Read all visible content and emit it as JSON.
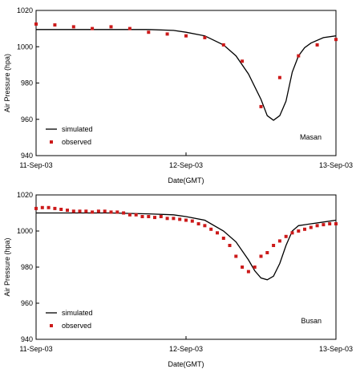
{
  "chart_data": [
    {
      "type": "line",
      "station": "Masan",
      "xlabel": "Date(GMT)",
      "ylabel": "Air Pressure (hpa)",
      "x_tick_labels": [
        "11-Sep-03",
        "12-Sep-03",
        "13-Sep-03"
      ],
      "x_tick_values": [
        0,
        24,
        48
      ],
      "xlim": [
        0,
        48
      ],
      "ylim": [
        940,
        1020
      ],
      "y_ticks": [
        940,
        960,
        980,
        1000,
        1020
      ],
      "series": [
        {
          "name": "simulated",
          "style": "line",
          "x": [
            0,
            6,
            12,
            18,
            22,
            24,
            27,
            30,
            32,
            34,
            36,
            37,
            38,
            39,
            39.5,
            40,
            41,
            42,
            43,
            44,
            46,
            48
          ],
          "y": [
            1009.5,
            1009.5,
            1009.5,
            1009.5,
            1009,
            1008,
            1006,
            1001,
            995,
            985,
            971,
            962,
            959.5,
            962,
            966,
            970,
            986,
            995,
            999.5,
            1002,
            1005,
            1006
          ]
        },
        {
          "name": "observed",
          "style": "marker",
          "x": [
            0,
            3,
            6,
            9,
            12,
            15,
            18,
            21,
            24,
            27,
            30,
            33,
            36,
            39,
            42,
            45,
            48
          ],
          "y": [
            1012.5,
            1012,
            1011,
            1010,
            1011,
            1010,
            1008,
            1007,
            1006,
            1005,
            1001,
            992,
            967,
            983,
            995,
            1001,
            1004
          ]
        }
      ]
    },
    {
      "type": "line",
      "station": "Busan",
      "xlabel": "Date(GMT)",
      "ylabel": "Air Pressure (hpa)",
      "x_tick_labels": [
        "11-Sep-03",
        "12-Sep-03",
        "13-Sep-03"
      ],
      "x_tick_values": [
        0,
        24,
        48
      ],
      "xlim": [
        0,
        48
      ],
      "ylim": [
        940,
        1020
      ],
      "y_ticks": [
        940,
        960,
        980,
        1000,
        1020
      ],
      "series": [
        {
          "name": "simulated",
          "style": "line",
          "x": [
            0,
            6,
            12,
            18,
            22,
            24,
            27,
            30,
            32,
            34,
            35,
            36,
            37,
            38,
            39,
            40,
            41,
            42,
            44,
            46,
            48
          ],
          "y": [
            1010,
            1010,
            1010,
            1009.5,
            1009,
            1008,
            1006,
            1000,
            994,
            984,
            978,
            974,
            973,
            975,
            982,
            992,
            1000,
            1003,
            1004,
            1005,
            1006
          ]
        },
        {
          "name": "observed",
          "style": "marker",
          "x": [
            0,
            1,
            2,
            3,
            4,
            5,
            6,
            7,
            8,
            9,
            10,
            11,
            12,
            13,
            14,
            15,
            16,
            17,
            18,
            19,
            20,
            21,
            22,
            23,
            24,
            25,
            26,
            27,
            28,
            29,
            30,
            31,
            32,
            33,
            34,
            35,
            36,
            37,
            38,
            39,
            40,
            41,
            42,
            43,
            44,
            45,
            46,
            47,
            48
          ],
          "y": [
            1012.5,
            1013,
            1013,
            1012.5,
            1012,
            1011.5,
            1011,
            1011,
            1011,
            1010.5,
            1011,
            1011,
            1010.5,
            1010.5,
            1010,
            1009,
            1009,
            1008,
            1008,
            1007.5,
            1008,
            1007,
            1007,
            1006.5,
            1006,
            1005.5,
            1004,
            1003,
            1001,
            999,
            996,
            992,
            986,
            980,
            977.5,
            980,
            986,
            988,
            992,
            994.5,
            997,
            999,
            1000,
            1001,
            1002,
            1003,
            1003.5,
            1004,
            1004
          ]
        }
      ]
    }
  ]
}
